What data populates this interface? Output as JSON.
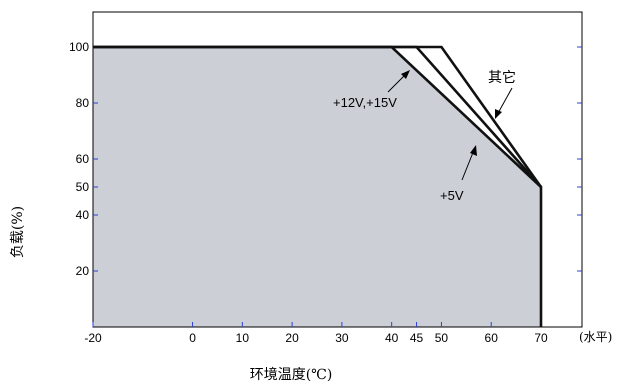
{
  "chart_data": {
    "type": "area",
    "xlabel": "环境温度(℃)",
    "x_suffix": "(水平)",
    "ylabel": "负载(%)",
    "xlim": [
      -20,
      80
    ],
    "ylim": [
      0,
      110
    ],
    "x_ticks": [
      -20,
      0,
      10,
      20,
      30,
      40,
      45,
      50,
      60,
      70
    ],
    "y_ticks": [
      20,
      40,
      50,
      60,
      80,
      100
    ],
    "grid": false,
    "series": [
      {
        "name": "+5V",
        "x": [
          -20,
          40,
          70,
          70
        ],
        "y": [
          100,
          100,
          50,
          0
        ]
      },
      {
        "name": "+12V,+15V",
        "x": [
          -20,
          45,
          70
        ],
        "y": [
          100,
          100,
          50
        ]
      },
      {
        "name": "其它",
        "x": [
          -20,
          50,
          70
        ],
        "y": [
          100,
          100,
          50
        ]
      }
    ],
    "annotations": [
      {
        "text": "+12V,+15V",
        "target_series": "+12V,+15V"
      },
      {
        "text": "其它",
        "target_series": "其它"
      },
      {
        "text": "+5V",
        "target_series": "+5V"
      }
    ],
    "colors": {
      "fill": "#ccd0d6",
      "line": "#111111",
      "tick_mark": "#2d3fd6"
    }
  }
}
